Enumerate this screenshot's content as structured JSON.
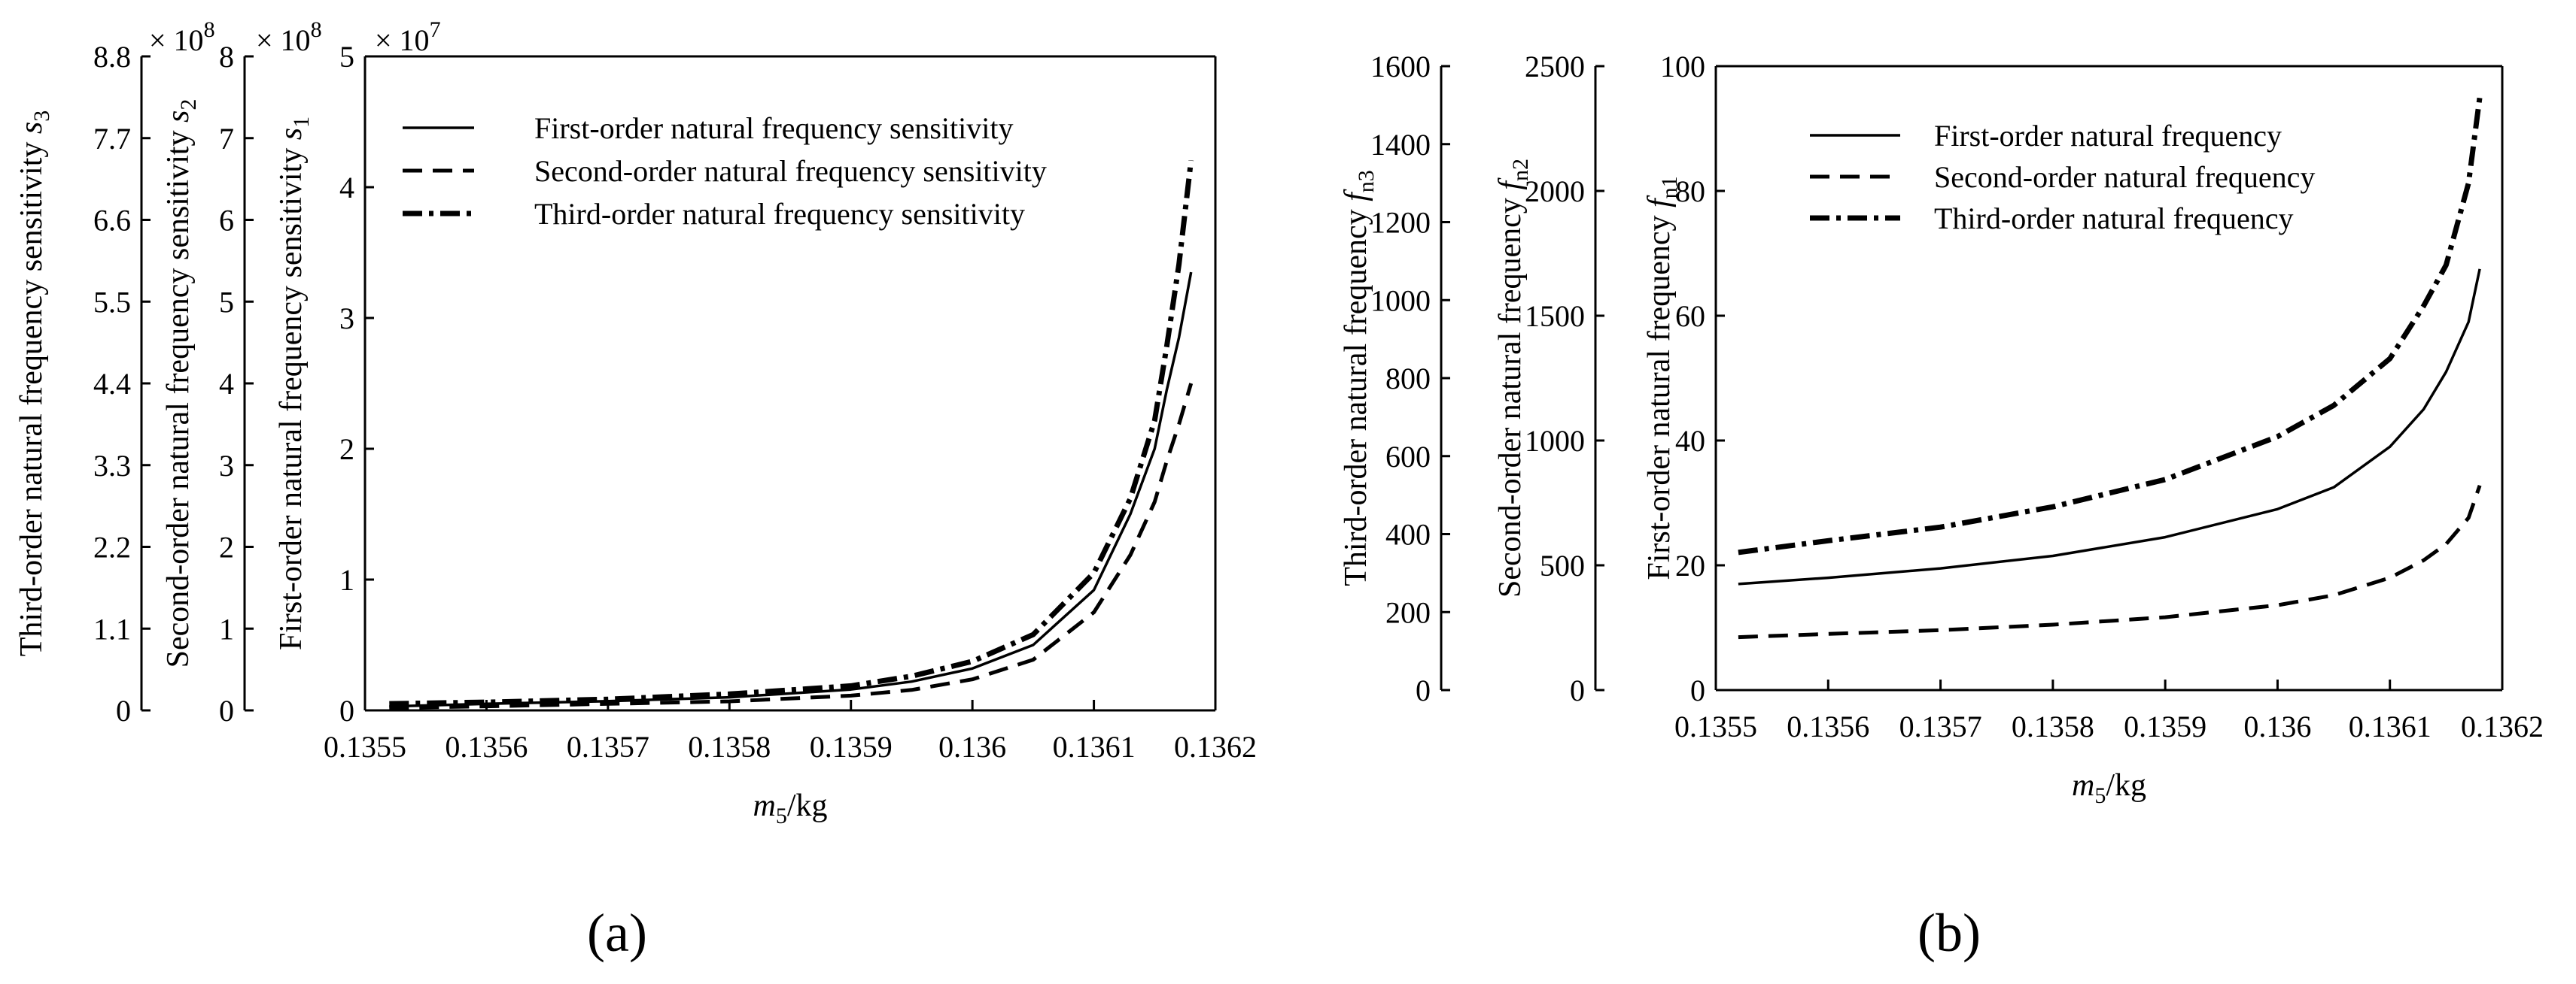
{
  "chart_data": [
    {
      "type": "line",
      "panel": "(a)",
      "xlabel_italic": "m",
      "xlabel_sub": "5",
      "xlabel_unit": "/kg",
      "xlim": [
        0.1355,
        0.1362
      ],
      "xticks": [
        "0.1355",
        "0.1356",
        "0.1357",
        "0.1358",
        "0.1359",
        "0.136",
        "0.1361",
        "0.1362"
      ],
      "axes": [
        {
          "id": "s1",
          "label_text": "First-order natural frequency sensitivity ",
          "label_italic": "s",
          "label_sub": "1",
          "ylim": [
            0,
            5
          ],
          "ticks": [
            "0",
            "1",
            "2",
            "3",
            "4",
            "5"
          ],
          "multiplier_prefix": "× 10",
          "multiplier_exp": "7"
        },
        {
          "id": "s2",
          "label_text": "Second-order natural frequency sensitivity ",
          "label_italic": "s",
          "label_sub": "2",
          "ylim": [
            0,
            8
          ],
          "ticks": [
            "0",
            "1",
            "2",
            "3",
            "4",
            "5",
            "6",
            "7",
            "8"
          ],
          "multiplier_prefix": "× 10",
          "multiplier_exp": "8"
        },
        {
          "id": "s3",
          "label_text": "Third-order natural frequency sensitivity ",
          "label_italic": "s",
          "label_sub": "3",
          "ylim": [
            0,
            8.8
          ],
          "ticks": [
            "0",
            "1.1",
            "2.2",
            "3.3",
            "4.4",
            "5.5",
            "6.6",
            "7.7",
            "8.8"
          ],
          "multiplier_prefix": "× 10",
          "multiplier_exp": "8"
        }
      ],
      "legend": [
        "First-order natural frequency sensitivity",
        "Second-order natural frequency sensitivity",
        "Third-order natural frequency sensitivity"
      ],
      "series": [
        {
          "name": "First-order natural frequency sensitivity",
          "axis": "s1",
          "style": "solid",
          "x": [
            0.13552,
            0.1356,
            0.1357,
            0.1358,
            0.1359,
            0.13595,
            0.136,
            0.13605,
            0.1361,
            0.13613,
            0.13615,
            0.13616,
            0.13617,
            0.13618
          ],
          "y": [
            0.03,
            0.05,
            0.07,
            0.1,
            0.16,
            0.22,
            0.32,
            0.5,
            0.92,
            1.5,
            2.0,
            2.45,
            2.85,
            3.35
          ]
        },
        {
          "name": "Second-order natural frequency sensitivity",
          "axis": "s2",
          "style": "dashed",
          "x": [
            0.13552,
            0.1356,
            0.1357,
            0.1358,
            0.1359,
            0.13595,
            0.136,
            0.13605,
            0.1361,
            0.13613,
            0.13615,
            0.13616,
            0.13617,
            0.13618
          ],
          "y": [
            0.03,
            0.05,
            0.08,
            0.11,
            0.18,
            0.25,
            0.38,
            0.62,
            1.2,
            1.9,
            2.55,
            3.05,
            3.5,
            4.0
          ]
        },
        {
          "name": "Third-order natural frequency sensitivity",
          "axis": "s3",
          "style": "dashdot",
          "x": [
            0.13552,
            0.1356,
            0.1357,
            0.1358,
            0.1359,
            0.13595,
            0.136,
            0.13605,
            0.1361,
            0.13613,
            0.13615,
            0.13616,
            0.13617,
            0.13618
          ],
          "y": [
            0.09,
            0.11,
            0.15,
            0.22,
            0.33,
            0.46,
            0.66,
            1.02,
            1.85,
            2.85,
            3.9,
            4.9,
            6.0,
            7.4
          ]
        }
      ]
    },
    {
      "type": "line",
      "panel": "(b)",
      "xlabel_italic": "m",
      "xlabel_sub": "5",
      "xlabel_unit": "/kg",
      "xlim": [
        0.1355,
        0.1362
      ],
      "xticks": [
        "0.1355",
        "0.1356",
        "0.1357",
        "0.1358",
        "0.1359",
        "0.136",
        "0.1361",
        "0.1362"
      ],
      "axes": [
        {
          "id": "fn1",
          "label_text": "First-order natural frequency ",
          "label_italic": "f",
          "label_sub": "n1",
          "ylim": [
            0,
            100
          ],
          "ticks": [
            "0",
            "20",
            "40",
            "60",
            "80",
            "100"
          ]
        },
        {
          "id": "fn2",
          "label_text": "Second-order natural frequency ",
          "label_italic": "f",
          "label_sub": "n2",
          "ylim": [
            0,
            2500
          ],
          "ticks": [
            "0",
            "500",
            "1000",
            "1500",
            "2000",
            "2500"
          ]
        },
        {
          "id": "fn3",
          "label_text": "Third-order natural frequency ",
          "label_italic": "f",
          "label_sub": "n3",
          "ylim": [
            0,
            1600
          ],
          "ticks": [
            "0",
            "200",
            "400",
            "600",
            "800",
            "1000",
            "1200",
            "1400",
            "1600"
          ]
        }
      ],
      "legend": [
        "First-order natural frequency",
        "Second-order natural frequency",
        "Third-order natural frequency"
      ],
      "series": [
        {
          "name": "First-order natural frequency",
          "axis": "fn1",
          "style": "solid",
          "x": [
            0.13552,
            0.1356,
            0.1357,
            0.1358,
            0.1359,
            0.136,
            0.13605,
            0.1361,
            0.13613,
            0.13615,
            0.13617,
            0.13618
          ],
          "y": [
            17,
            18,
            19.5,
            21.5,
            24.5,
            29,
            32.5,
            39,
            45,
            51,
            59,
            67.5
          ]
        },
        {
          "name": "Second-order natural frequency",
          "axis": "fn2",
          "style": "dashed",
          "x": [
            0.13552,
            0.1356,
            0.1357,
            0.1358,
            0.1359,
            0.136,
            0.13605,
            0.1361,
            0.13613,
            0.13615,
            0.13617,
            0.13618
          ],
          "y": [
            212,
            225,
            240,
            262,
            292,
            340,
            380,
            450,
            520,
            585,
            690,
            820
          ]
        },
        {
          "name": "Third-order natural frequency",
          "axis": "fn3",
          "style": "dashdot",
          "x": [
            0.13552,
            0.1356,
            0.1357,
            0.1358,
            0.1359,
            0.136,
            0.13605,
            0.1361,
            0.13613,
            0.13615,
            0.13617,
            0.13618
          ],
          "y": [
            353,
            383,
            418,
            470,
            540,
            650,
            730,
            850,
            985,
            1090,
            1300,
            1520
          ]
        }
      ]
    }
  ]
}
